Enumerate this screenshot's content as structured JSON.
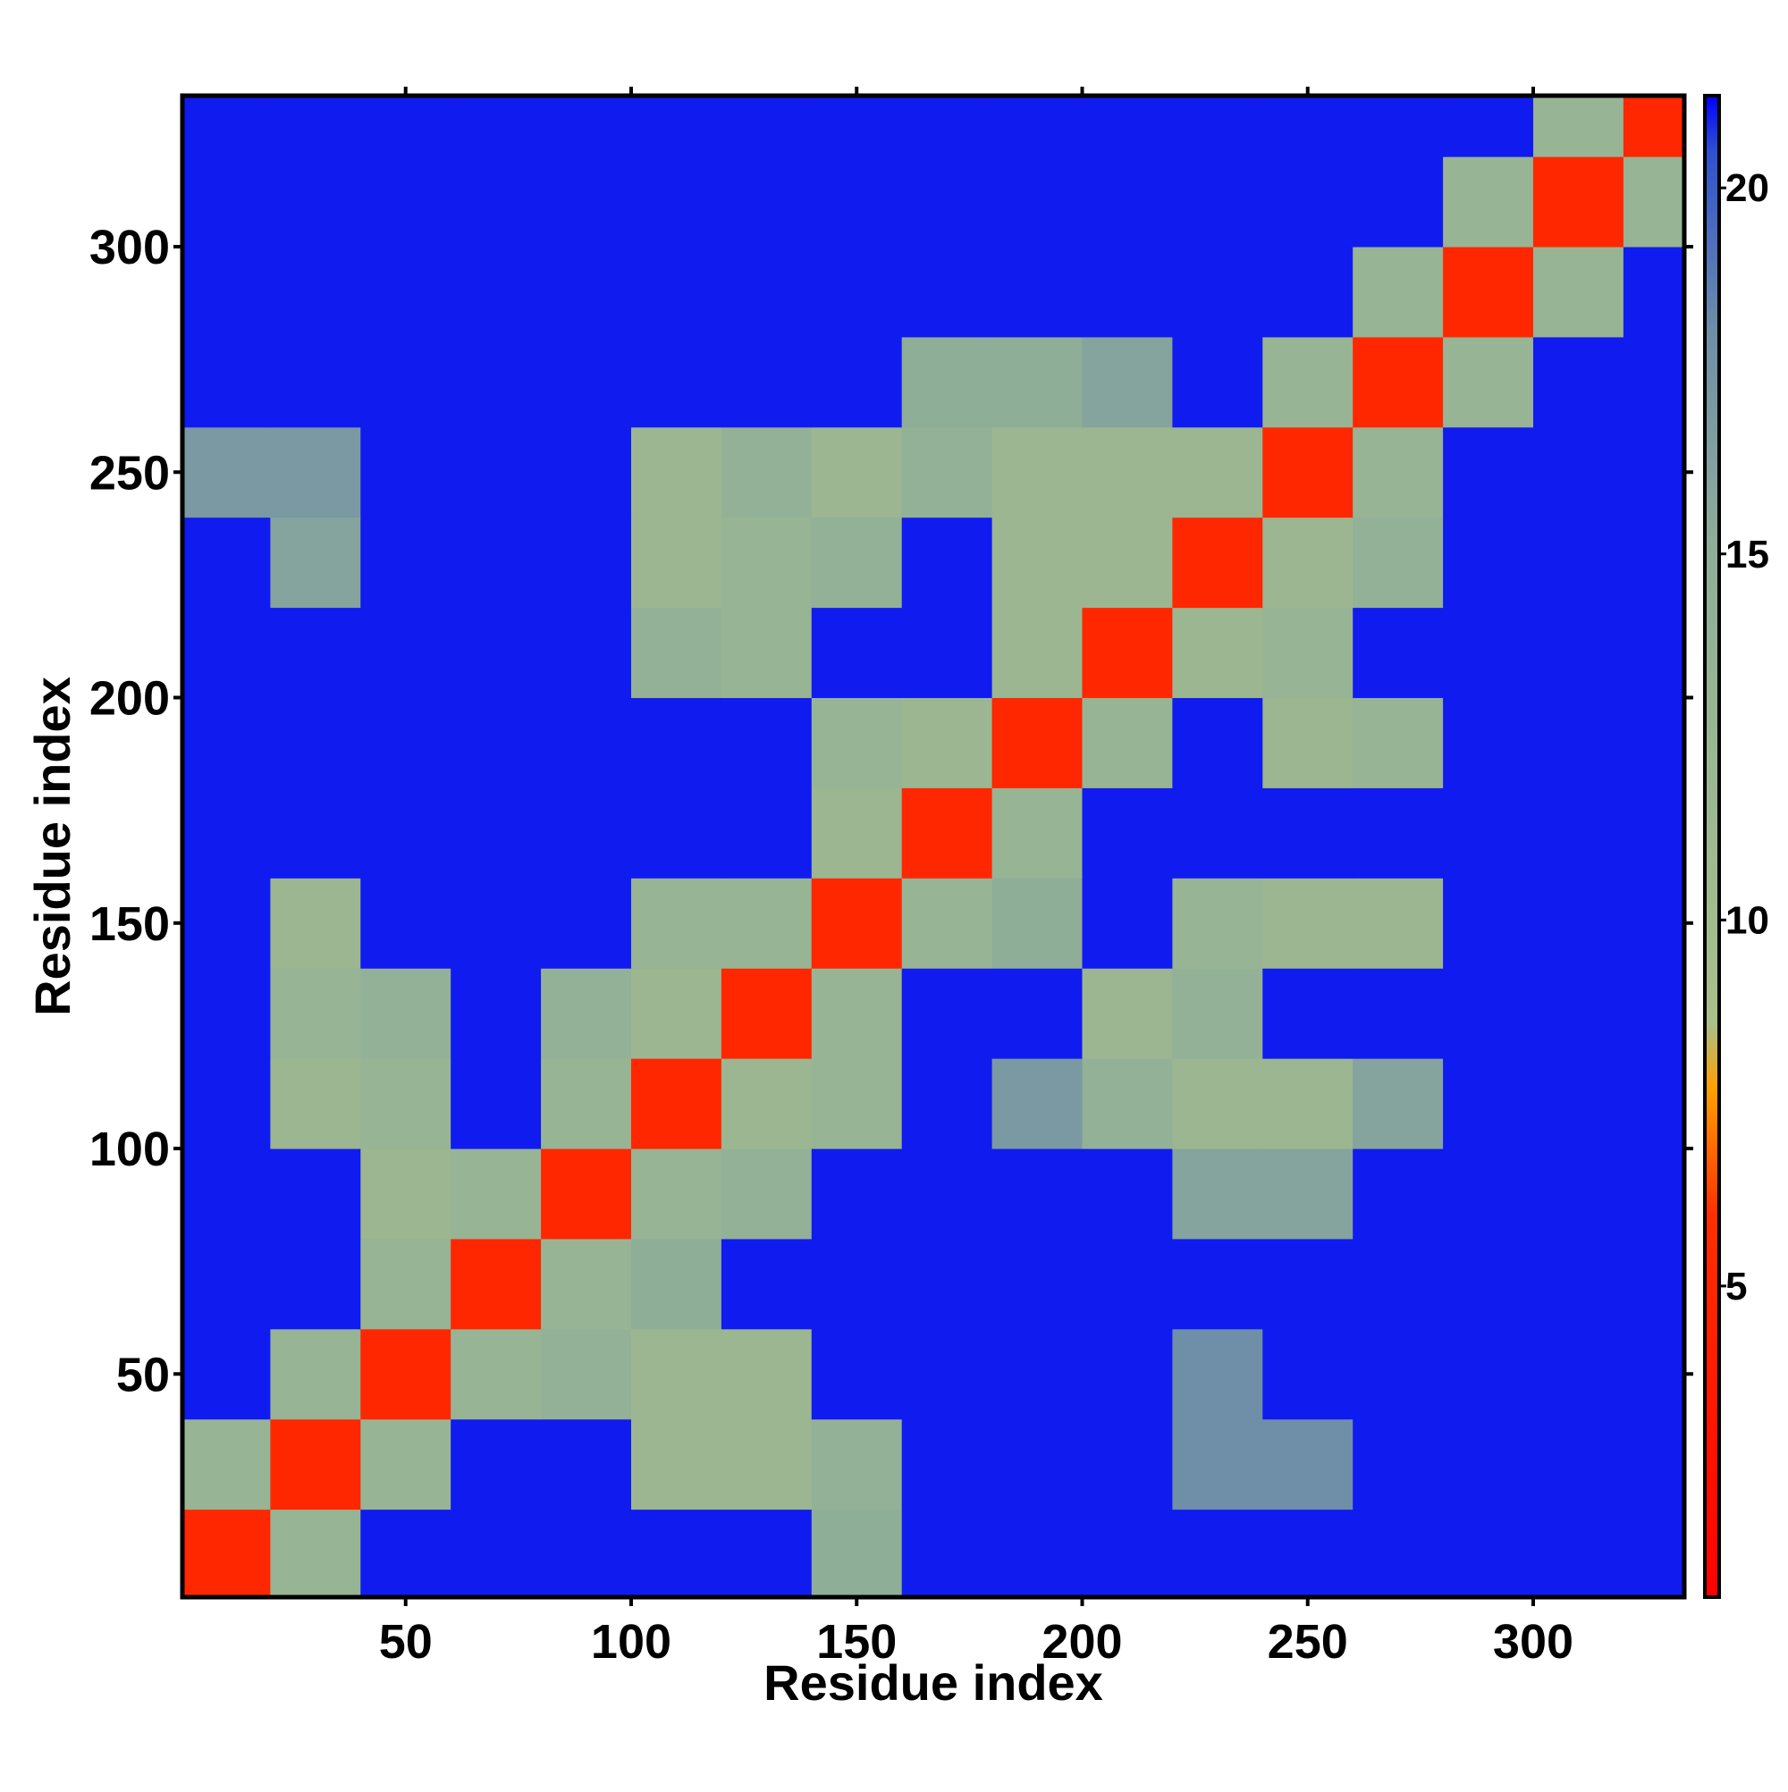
{
  "chart_data": {
    "type": "heatmap",
    "x_label": "Residue index",
    "y_label": "Residue index",
    "xlim": [
      0.5,
      333.5
    ],
    "ylim": [
      0.5,
      333.5
    ],
    "xticks": [
      50,
      100,
      150,
      200,
      250,
      300
    ],
    "yticks": [
      50,
      100,
      150,
      200,
      250,
      300
    ],
    "x_edges": [
      0.5,
      20,
      40,
      60,
      80,
      100,
      120,
      140,
      160,
      180,
      200,
      220,
      240,
      260,
      280,
      300,
      320,
      333.5
    ],
    "y_edges": [
      0.5,
      20,
      40,
      60,
      80,
      100,
      120,
      140,
      160,
      180,
      200,
      220,
      240,
      260,
      280,
      300,
      320,
      333.5
    ],
    "z": [
      [
        5,
        13,
        21,
        21,
        21,
        21,
        21,
        15,
        21,
        21,
        21,
        21,
        21,
        21,
        21,
        21,
        21
      ],
      [
        13,
        5,
        13,
        21,
        21,
        12,
        12,
        14,
        21,
        21,
        21,
        18,
        18,
        21,
        21,
        21,
        21
      ],
      [
        21,
        13,
        5,
        13,
        14,
        12,
        12,
        21,
        21,
        21,
        21,
        18,
        21,
        21,
        21,
        21,
        21
      ],
      [
        21,
        21,
        13,
        5,
        13,
        15,
        21,
        21,
        21,
        21,
        21,
        21,
        21,
        21,
        21,
        21,
        21
      ],
      [
        21,
        21,
        12,
        13,
        5,
        13,
        14,
        21,
        21,
        21,
        21,
        16,
        16,
        21,
        21,
        21,
        21
      ],
      [
        21,
        12,
        13,
        21,
        13,
        5,
        12,
        13,
        21,
        17,
        14,
        12,
        12,
        16,
        21,
        21,
        21
      ],
      [
        21,
        13,
        14,
        21,
        14,
        12,
        5,
        13,
        21,
        21,
        12,
        14,
        21,
        21,
        21,
        21,
        21
      ],
      [
        21,
        12,
        21,
        21,
        21,
        13,
        13,
        5,
        13,
        15,
        21,
        13,
        12,
        12,
        21,
        21,
        21
      ],
      [
        21,
        21,
        21,
        21,
        21,
        21,
        21,
        12,
        5,
        13,
        21,
        21,
        21,
        21,
        21,
        21,
        21
      ],
      [
        21,
        21,
        21,
        21,
        21,
        21,
        21,
        13,
        12,
        5,
        13,
        21,
        12,
        13,
        21,
        21,
        21
      ],
      [
        21,
        21,
        21,
        21,
        21,
        14,
        13,
        21,
        21,
        12,
        5,
        12,
        13,
        21,
        21,
        21,
        21
      ],
      [
        21,
        16,
        21,
        21,
        21,
        12,
        13,
        14,
        21,
        12,
        12,
        5,
        12,
        14,
        21,
        21,
        21
      ],
      [
        17,
        17,
        21,
        21,
        21,
        12,
        14,
        12,
        14,
        12,
        12,
        12,
        5,
        13,
        21,
        21,
        21
      ],
      [
        21,
        21,
        21,
        21,
        21,
        21,
        21,
        21,
        15,
        15,
        16,
        21,
        13,
        5,
        13,
        21,
        21
      ],
      [
        21,
        21,
        21,
        21,
        21,
        21,
        21,
        21,
        21,
        21,
        21,
        21,
        21,
        13,
        5,
        13,
        21
      ],
      [
        21,
        21,
        21,
        21,
        21,
        21,
        21,
        21,
        21,
        21,
        21,
        21,
        21,
        21,
        13,
        5,
        13
      ],
      [
        21,
        21,
        21,
        21,
        21,
        21,
        21,
        21,
        21,
        21,
        21,
        21,
        21,
        21,
        21,
        13,
        5
      ]
    ],
    "clim": [
      0.75,
      21.26
    ],
    "cticks": [
      5,
      10,
      15,
      20
    ],
    "colorscale": [
      [
        0.75,
        "#ff0000"
      ],
      [
        6,
        "#ff3000"
      ],
      [
        7.7,
        "#ffa000"
      ],
      [
        8.6,
        "#a8c08a"
      ],
      [
        15,
        "#8fae98"
      ],
      [
        18,
        "#6f8fa8"
      ],
      [
        20.5,
        "#3050d0"
      ],
      [
        21.26,
        "#0000ff"
      ]
    ]
  }
}
